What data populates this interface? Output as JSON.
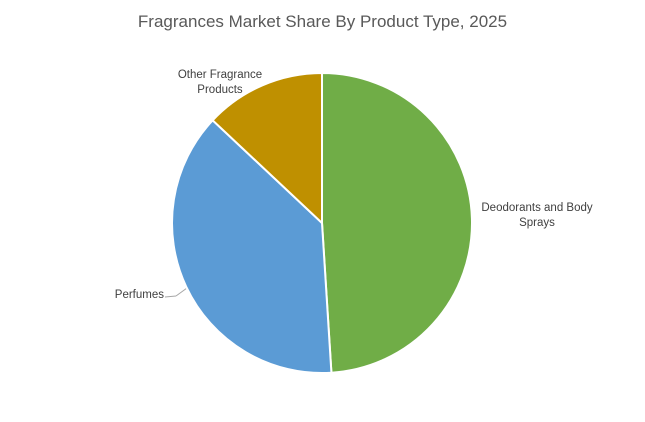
{
  "chart_data": {
    "type": "pie",
    "title": "Fragrances Market Share By Product Type, 2025",
    "categories": [
      "Deodorants and Body Sprays",
      "Perfumes",
      "Other Fragrance Products"
    ],
    "values": [
      49,
      38,
      13
    ],
    "colors": [
      "#70ad47",
      "#5b9bd5",
      "#bf9000"
    ]
  }
}
